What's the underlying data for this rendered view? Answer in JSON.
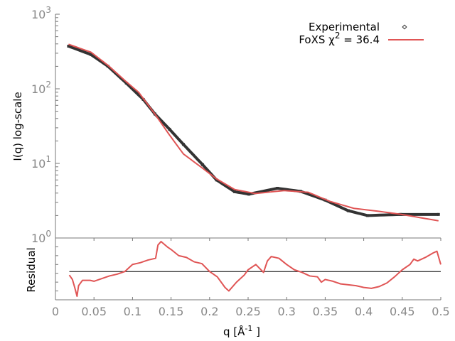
{
  "chart_data": [
    {
      "type": "line",
      "title": "",
      "xlabel": "q [Å -1 ]",
      "xlabel_base": "q [Å",
      "xlabel_sup": "-1",
      "xlabel_end": " ]",
      "ylabel": "I(q) log-scale",
      "yscale": "log",
      "xlim": [
        0,
        0.5
      ],
      "ylim": [
        1,
        1000
      ],
      "xticks": [
        "0",
        "0.05",
        "0.1",
        "0.15",
        "0.2",
        "0.25",
        "0.3",
        "0.35",
        "0.4",
        "0.45",
        "0.5"
      ],
      "yticks": [
        {
          "base": "10",
          "exp": "0",
          "value": 1
        },
        {
          "base": "10",
          "exp": "1",
          "value": 10
        },
        {
          "base": "10",
          "exp": "2",
          "value": 100
        },
        {
          "base": "10",
          "exp": "3",
          "value": 1000
        }
      ],
      "legend_position": "top-right",
      "series": [
        {
          "name": "Experimental",
          "style": "points",
          "color": "#333333",
          "q": [
            0.017,
            0.046,
            0.068,
            0.092,
            0.114,
            0.129,
            0.148,
            0.166,
            0.191,
            0.209,
            0.2325,
            0.251,
            0.288,
            0.318,
            0.35,
            0.38,
            0.405,
            0.448,
            0.497
          ],
          "I": [
            373,
            288,
            201,
            119,
            72,
            46,
            28.7,
            18,
            9.6,
            6.0,
            4.17,
            3.87,
            4.64,
            4.22,
            3.22,
            2.32,
            2.0,
            2.07,
            2.07
          ]
        },
        {
          "name": "FoXS χ 2 = 36.4",
          "label_base": "FoXS χ",
          "label_sup": "2",
          "label_end": " = 36.4",
          "style": "line",
          "color": "#e05555",
          "q": [
            0.017,
            0.046,
            0.068,
            0.092,
            0.108,
            0.129,
            0.148,
            0.166,
            0.191,
            0.209,
            0.2325,
            0.259,
            0.297,
            0.328,
            0.356,
            0.387,
            0.418,
            0.448,
            0.497
          ],
          "I": [
            395,
            310,
            207,
            124,
            89.6,
            46,
            24,
            13.4,
            8.6,
            6.2,
            4.47,
            3.95,
            4.32,
            4.1,
            3.1,
            2.5,
            2.29,
            2.08,
            1.7
          ]
        }
      ]
    },
    {
      "type": "line",
      "ylabel": "Residual",
      "xlim": [
        0,
        0.5
      ],
      "ylim": [
        -3.2,
        3.8
      ],
      "reference_line": 0,
      "series": [
        {
          "name": "Residual",
          "color": "#e05555",
          "q": [
            0.018,
            0.022,
            0.025,
            0.028,
            0.03,
            0.035,
            0.045,
            0.05,
            0.06,
            0.07,
            0.08,
            0.09,
            0.1,
            0.11,
            0.12,
            0.13,
            0.133,
            0.137,
            0.145,
            0.15,
            0.16,
            0.17,
            0.18,
            0.19,
            0.2,
            0.21,
            0.22,
            0.225,
            0.235,
            0.245,
            0.25,
            0.26,
            0.27,
            0.275,
            0.28,
            0.29,
            0.3,
            0.31,
            0.32,
            0.33,
            0.34,
            0.345,
            0.35,
            0.36,
            0.37,
            0.38,
            0.39,
            0.4,
            0.41,
            0.42,
            0.43,
            0.44,
            0.45,
            0.46,
            0.465,
            0.47,
            0.48,
            0.49,
            0.495,
            0.5
          ],
          "r": [
            -0.4,
            -0.9,
            -1.8,
            -2.8,
            -1.6,
            -1.0,
            -1.0,
            -1.1,
            -0.8,
            -0.5,
            -0.3,
            0.0,
            0.8,
            1.0,
            1.3,
            1.5,
            3.0,
            3.4,
            2.8,
            2.5,
            1.8,
            1.6,
            1.1,
            0.9,
            0.0,
            -0.6,
            -1.8,
            -2.2,
            -1.2,
            -0.4,
            0.2,
            0.8,
            -0.1,
            1.2,
            1.7,
            1.5,
            0.8,
            0.2,
            -0.1,
            -0.5,
            -0.6,
            -1.2,
            -0.9,
            -1.1,
            -1.4,
            -1.5,
            -1.6,
            -1.8,
            -1.9,
            -1.7,
            -1.3,
            -0.6,
            0.2,
            0.8,
            1.4,
            1.2,
            1.6,
            2.1,
            2.3,
            0.8
          ]
        }
      ]
    }
  ]
}
